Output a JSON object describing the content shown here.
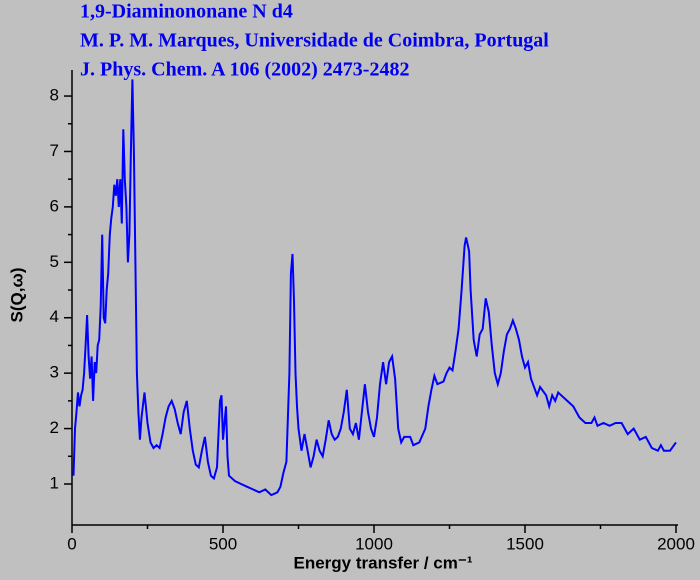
{
  "chart_data": {
    "type": "line",
    "title": "1,9-Diaminononane N d4",
    "subtitle": [
      "M. P. M. Marques, Universidade de Coimbra, Portugal",
      "J. Phys. Chem. A 106 (2002) 2473-2482"
    ],
    "xlabel": "Energy transfer / cm⁻¹",
    "ylabel": "S(Q,ω)",
    "xlim": [
      0,
      2000
    ],
    "xticks": [
      0,
      500,
      1000,
      1500,
      2000
    ],
    "ylim": [
      0.26,
      8.47
    ],
    "yticks": [
      1,
      2,
      3,
      4,
      5,
      6,
      7,
      8
    ],
    "x": [
      5,
      10,
      15,
      20,
      25,
      30,
      35,
      40,
      45,
      50,
      55,
      60,
      65,
      70,
      75,
      80,
      85,
      90,
      95,
      100,
      105,
      110,
      115,
      120,
      125,
      130,
      135,
      140,
      145,
      150,
      155,
      160,
      165,
      170,
      175,
      180,
      185,
      190,
      195,
      200,
      205,
      210,
      215,
      220,
      225,
      230,
      240,
      250,
      260,
      270,
      280,
      290,
      300,
      310,
      320,
      330,
      340,
      350,
      360,
      370,
      380,
      390,
      400,
      410,
      420,
      430,
      440,
      450,
      460,
      470,
      480,
      490,
      495,
      500,
      505,
      510,
      515,
      520,
      540,
      560,
      580,
      600,
      620,
      640,
      660,
      680,
      690,
      700,
      710,
      720,
      725,
      730,
      735,
      740,
      745,
      750,
      760,
      770,
      780,
      790,
      800,
      810,
      820,
      830,
      840,
      850,
      860,
      870,
      880,
      890,
      900,
      910,
      920,
      930,
      940,
      950,
      960,
      970,
      980,
      990,
      1000,
      1010,
      1020,
      1030,
      1040,
      1050,
      1060,
      1070,
      1080,
      1090,
      1100,
      1120,
      1130,
      1150,
      1170,
      1180,
      1190,
      1200,
      1210,
      1230,
      1240,
      1250,
      1260,
      1270,
      1280,
      1290,
      1300,
      1305,
      1315,
      1320,
      1330,
      1340,
      1350,
      1360,
      1370,
      1380,
      1390,
      1400,
      1410,
      1420,
      1430,
      1440,
      1450,
      1460,
      1470,
      1480,
      1490,
      1500,
      1510,
      1520,
      1540,
      1550,
      1570,
      1580,
      1590,
      1600,
      1610,
      1620,
      1640,
      1660,
      1680,
      1700,
      1720,
      1730,
      1740,
      1760,
      1780,
      1800,
      1820,
      1840,
      1860,
      1880,
      1900,
      1920,
      1940,
      1950,
      1960,
      1980,
      2000
    ],
    "series": [
      {
        "color": "#0000ff",
        "values": [
          1.15,
          2.0,
          2.3,
          2.65,
          2.4,
          2.6,
          2.7,
          3.0,
          3.5,
          4.05,
          3.3,
          2.9,
          3.3,
          2.5,
          3.2,
          3.0,
          3.5,
          3.6,
          4.2,
          5.5,
          4.0,
          3.9,
          4.5,
          4.8,
          5.5,
          5.8,
          6.0,
          6.4,
          6.2,
          6.5,
          6.0,
          6.5,
          5.7,
          7.4,
          6.5,
          6.0,
          5.0,
          5.5,
          7.0,
          8.3,
          7.0,
          5.0,
          3.0,
          2.3,
          1.8,
          2.2,
          2.65,
          2.1,
          1.75,
          1.65,
          1.7,
          1.65,
          1.9,
          2.2,
          2.4,
          2.5,
          2.35,
          2.1,
          1.9,
          2.3,
          2.5,
          2.0,
          1.6,
          1.35,
          1.3,
          1.6,
          1.85,
          1.4,
          1.15,
          1.1,
          1.3,
          2.5,
          2.6,
          1.8,
          2.1,
          2.4,
          1.5,
          1.15,
          1.05,
          1.0,
          0.95,
          0.9,
          0.85,
          0.9,
          0.8,
          0.85,
          0.95,
          1.2,
          1.4,
          3.0,
          4.8,
          5.15,
          4.3,
          3.0,
          2.4,
          2.0,
          1.6,
          1.9,
          1.6,
          1.3,
          1.5,
          1.8,
          1.6,
          1.5,
          1.8,
          2.15,
          1.9,
          1.8,
          1.85,
          2.0,
          2.3,
          2.7,
          2.0,
          1.9,
          2.1,
          1.8,
          2.3,
          2.8,
          2.3,
          2.0,
          1.85,
          2.2,
          2.8,
          3.2,
          2.8,
          3.2,
          3.3,
          2.9,
          2.0,
          1.75,
          1.85,
          1.85,
          1.7,
          1.75,
          2.0,
          2.4,
          2.7,
          2.95,
          2.8,
          2.85,
          3.0,
          3.1,
          3.05,
          3.4,
          3.8,
          4.5,
          5.3,
          5.45,
          5.2,
          4.5,
          3.6,
          3.3,
          3.7,
          3.8,
          4.35,
          4.1,
          3.5,
          3.0,
          2.8,
          3.0,
          3.4,
          3.7,
          3.8,
          3.95,
          3.8,
          3.6,
          3.3,
          3.1,
          3.2,
          2.9,
          2.6,
          2.75,
          2.6,
          2.4,
          2.6,
          2.5,
          2.65,
          2.6,
          2.5,
          2.4,
          2.2,
          2.1,
          2.1,
          2.2,
          2.05,
          2.1,
          2.05,
          2.1,
          2.1,
          1.9,
          2.0,
          1.8,
          1.85,
          1.65,
          1.6,
          1.7,
          1.6,
          1.6,
          1.75
        ]
      }
    ]
  }
}
